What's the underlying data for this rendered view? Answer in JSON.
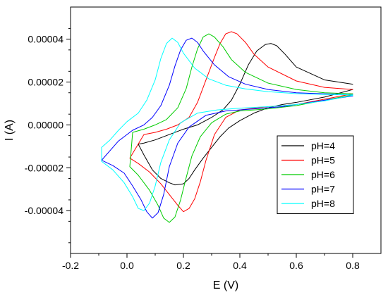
{
  "chart_data": {
    "type": "line",
    "title": "",
    "xlabel": "E (V)",
    "ylabel": "I (A)",
    "xlim": [
      -0.2,
      0.9
    ],
    "ylim": [
      -6e-05,
      5.5e-05
    ],
    "xticks": [
      "-0.2",
      "0.0",
      "0.2",
      "0.4",
      "0.6",
      "0.8"
    ],
    "yticks": [
      "-0.00004",
      "-0.00002",
      "0.00000",
      "0.00002",
      "0.00004"
    ],
    "grid": false,
    "legend_position": "center-right",
    "series": [
      {
        "name": "pH=4",
        "color": "#000000",
        "x": [
          0.8,
          0.7,
          0.6,
          0.56,
          0.53,
          0.51,
          0.49,
          0.46,
          0.43,
          0.4,
          0.37,
          0.34,
          0.3,
          0.25,
          0.2,
          0.15,
          0.1,
          0.06,
          0.04,
          0.06,
          0.09,
          0.12,
          0.15,
          0.17,
          0.2,
          0.22,
          0.24,
          0.27,
          0.3,
          0.33,
          0.36,
          0.4,
          0.45,
          0.5,
          0.55,
          0.6,
          0.7,
          0.8
        ],
        "y": [
          1.9e-05,
          2.1e-05,
          2.7e-05,
          3.3e-05,
          3.7e-05,
          3.8e-05,
          3.75e-05,
          3.45e-05,
          2.8e-05,
          1.9e-05,
          1.15e-05,
          7e-06,
          3.5e-06,
          0.0,
          -2e-06,
          -4.5e-06,
          -7e-06,
          -8.5e-06,
          -9e-06,
          -1.4e-05,
          -2.1e-05,
          -2.5e-05,
          -2.7e-05,
          -2.8e-05,
          -2.75e-05,
          -2.5e-05,
          -2.1e-05,
          -1.55e-05,
          -1.05e-05,
          -5.5e-06,
          -1.5e-06,
          2e-06,
          5.5e-06,
          8e-06,
          9.5e-06,
          1.05e-05,
          1.3e-05,
          1.65e-05
        ]
      },
      {
        "name": "pH=5",
        "color": "#ff0000",
        "x": [
          0.8,
          0.7,
          0.6,
          0.5,
          0.45,
          0.42,
          0.39,
          0.37,
          0.35,
          0.33,
          0.31,
          0.28,
          0.25,
          0.22,
          0.18,
          0.14,
          0.1,
          0.06,
          0.01,
          0.04,
          0.08,
          0.12,
          0.15,
          0.18,
          0.2,
          0.22,
          0.24,
          0.26,
          0.28,
          0.31,
          0.35,
          0.4,
          0.5,
          0.6,
          0.7,
          0.8
        ],
        "y": [
          1.65e-05,
          1.75e-05,
          2.05e-05,
          2.7e-05,
          3.3e-05,
          3.85e-05,
          4.25e-05,
          4.35e-05,
          4.25e-05,
          3.8e-05,
          3.15e-05,
          2.1e-05,
          1.05e-05,
          3.5e-06,
          0.0,
          -2e-06,
          -3.5e-06,
          -4.5e-06,
          -1.55e-05,
          -1.8e-05,
          -2.2e-05,
          -2.75e-05,
          -3.25e-05,
          -3.75e-05,
          -4.05e-05,
          -3.9e-05,
          -3.45e-05,
          -2.65e-05,
          -1.65e-05,
          -4.5e-06,
          3.5e-06,
          7e-06,
          8.5e-06,
          9.5e-06,
          1.2e-05,
          1.45e-05
        ]
      },
      {
        "name": "pH=6",
        "color": "#00cc00",
        "x": [
          0.8,
          0.7,
          0.6,
          0.5,
          0.42,
          0.37,
          0.34,
          0.31,
          0.29,
          0.27,
          0.25,
          0.23,
          0.21,
          0.18,
          0.14,
          0.1,
          0.06,
          0.02,
          0.01,
          0.04,
          0.08,
          0.11,
          0.13,
          0.15,
          0.17,
          0.19,
          0.21,
          0.23,
          0.26,
          0.3,
          0.35,
          0.4,
          0.5,
          0.6,
          0.7,
          0.8
        ],
        "y": [
          1.45e-05,
          1.5e-05,
          1.65e-05,
          1.95e-05,
          2.45e-05,
          3.05e-05,
          3.65e-05,
          4.1e-05,
          4.25e-05,
          4.1e-05,
          3.55e-05,
          2.7e-05,
          1.7e-05,
          8e-06,
          2.5e-06,
          0.0,
          -2e-06,
          -3.5e-06,
          -1.95e-05,
          -2.35e-05,
          -3.05e-05,
          -3.75e-05,
          -4.35e-05,
          -4.55e-05,
          -4.3e-05,
          -3.5e-05,
          -2.45e-05,
          -1.45e-05,
          -5.5e-06,
          1e-06,
          5e-06,
          6.5e-06,
          7.5e-06,
          9e-06,
          1.15e-05,
          1.4e-05
        ]
      },
      {
        "name": "pH=7",
        "color": "#0000ff",
        "x": [
          0.8,
          0.7,
          0.6,
          0.5,
          0.42,
          0.36,
          0.31,
          0.27,
          0.25,
          0.23,
          0.21,
          0.19,
          0.17,
          0.15,
          0.12,
          0.09,
          0.06,
          0.02,
          -0.03,
          -0.05,
          -0.09,
          -0.05,
          -0.01,
          0.02,
          0.05,
          0.07,
          0.09,
          0.11,
          0.13,
          0.15,
          0.18,
          0.22,
          0.28,
          0.35,
          0.45,
          0.55,
          0.65,
          0.8
        ],
        "y": [
          1.4e-05,
          1.45e-05,
          1.5e-05,
          1.65e-05,
          1.9e-05,
          2.25e-05,
          2.8e-05,
          3.45e-05,
          3.85e-05,
          4.05e-05,
          3.95e-05,
          3.5e-05,
          2.75e-05,
          1.85e-05,
          9e-06,
          3.5e-06,
          0.0,
          -2.5e-06,
          -7.5e-06,
          -1.05e-05,
          -1.65e-05,
          -1.9e-05,
          -2.25e-05,
          -2.85e-05,
          -3.5e-05,
          -4.05e-05,
          -4.35e-05,
          -4.1e-05,
          -3.25e-05,
          -1.95e-05,
          -8.5e-06,
          -1e-06,
          4.5e-06,
          6.5e-06,
          7.5e-06,
          8.5e-06,
          1.05e-05,
          1.35e-05
        ]
      },
      {
        "name": "pH=8",
        "color": "#00ffff",
        "x": [
          0.8,
          0.7,
          0.6,
          0.5,
          0.42,
          0.35,
          0.29,
          0.24,
          0.2,
          0.18,
          0.16,
          0.14,
          0.12,
          0.1,
          0.07,
          0.04,
          0.0,
          -0.03,
          -0.06,
          -0.09,
          -0.09,
          -0.05,
          -0.01,
          0.02,
          0.04,
          0.06,
          0.08,
          0.1,
          0.12,
          0.15,
          0.19,
          0.25,
          0.32,
          0.4,
          0.5,
          0.6,
          0.7,
          0.8
        ],
        "y": [
          1.4e-05,
          1.42e-05,
          1.46e-05,
          1.55e-05,
          1.68e-05,
          1.85e-05,
          2.15e-05,
          2.65e-05,
          3.35e-05,
          3.85e-05,
          4.05e-05,
          3.8e-05,
          3.1e-05,
          2.1e-05,
          1.15e-05,
          5.5e-06,
          1.5e-06,
          -2.5e-06,
          -7e-06,
          -1.05e-05,
          -1.7e-05,
          -2.1e-05,
          -2.7e-05,
          -3.35e-05,
          -3.9e-05,
          -4e-05,
          -3.65e-05,
          -2.85e-05,
          -1.75e-05,
          -7e-06,
          1e-06,
          5.5e-06,
          7e-06,
          7.8e-06,
          8.5e-06,
          9.5e-06,
          1.12e-05,
          1.38e-05
        ]
      }
    ]
  }
}
